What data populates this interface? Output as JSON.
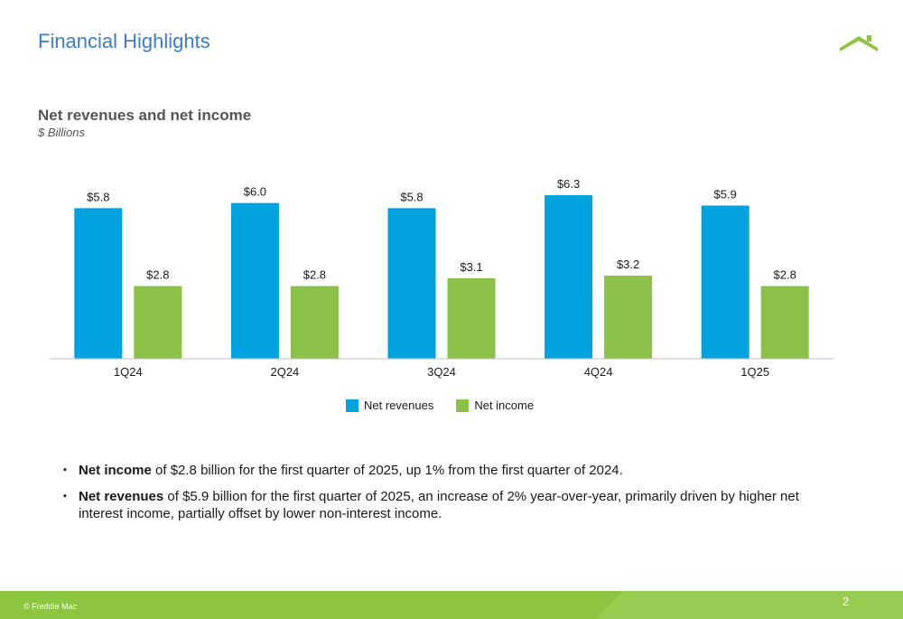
{
  "page": {
    "title": "Financial Highlights",
    "page_number": "2",
    "copyright": "© Freddie Mac"
  },
  "colors": {
    "title": "#3a7fc4",
    "net_revenues": "#00a3e0",
    "net_income": "#8bc149",
    "footer": "#8cc540"
  },
  "chart_data": {
    "type": "bar",
    "title": "Net revenues and net income",
    "subtitle": "$ Billions",
    "categories": [
      "1Q24",
      "2Q24",
      "3Q24",
      "4Q24",
      "1Q25"
    ],
    "series": [
      {
        "name": "Net revenues",
        "color": "#00a3e0",
        "values": [
          5.8,
          6.0,
          5.8,
          6.3,
          5.9
        ],
        "labels": [
          "$5.8",
          "$6.0",
          "$5.8",
          "$6.3",
          "$5.9"
        ]
      },
      {
        "name": "Net income",
        "color": "#8bc149",
        "values": [
          2.8,
          2.8,
          3.1,
          3.2,
          2.8
        ],
        "labels": [
          "$2.8",
          "$2.8",
          "$3.1",
          "$3.2",
          "$2.8"
        ]
      }
    ],
    "ylim": [
      0,
      6.3
    ],
    "grid": false,
    "legend": "bottom-center"
  },
  "legend": {
    "items": [
      {
        "label": "Net revenues",
        "color": "#00a3e0"
      },
      {
        "label": "Net income",
        "color": "#8bc149"
      }
    ]
  },
  "bullets": [
    {
      "bold": "Net income",
      "text": " of $2.8 billion for the first quarter of 2025, up 1% from the first quarter of 2024."
    },
    {
      "bold": "Net revenues",
      "text": " of $5.9 billion for the first quarter of 2025, an increase of 2% year-over-year, primarily driven by higher net interest income, partially offset by lower non-interest income."
    }
  ]
}
